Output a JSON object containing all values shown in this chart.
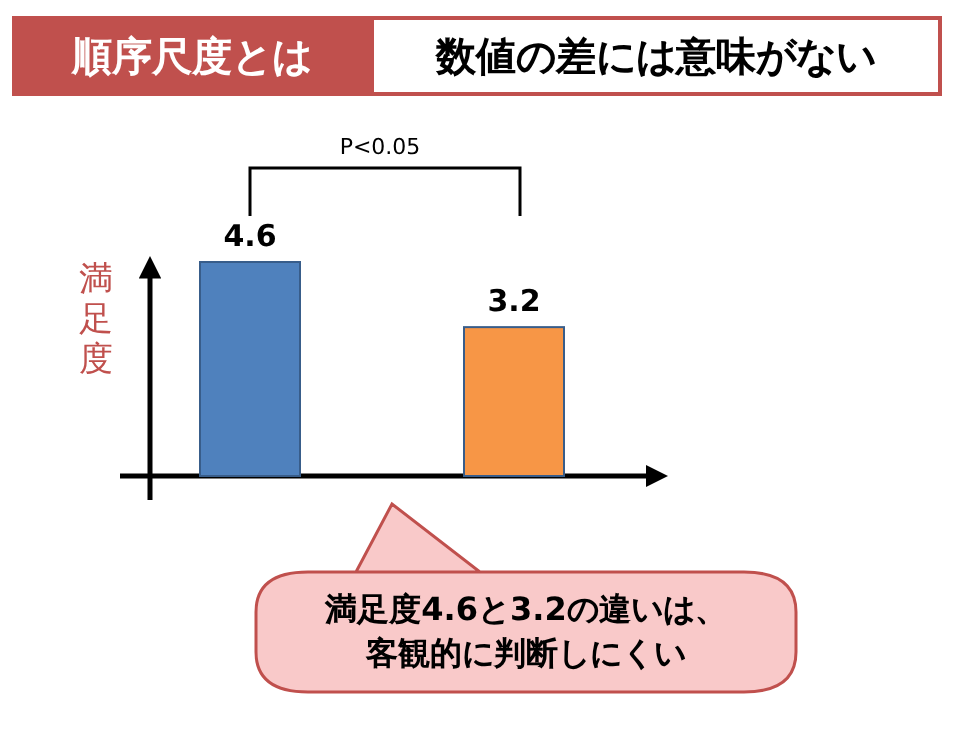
{
  "chart_data": {
    "type": "bar",
    "title": "順序尺度とは",
    "subtitle": "数値の差には意味がない",
    "ylabel": "満足度",
    "categories": [
      null,
      null
    ],
    "values": [
      4.6,
      3.2
    ],
    "colors": [
      "#4f81bd",
      "#f79646"
    ],
    "data_labels": true,
    "annotations": [
      "P<0.05",
      "満足度4.6と3.2の違いは、客観的に判断しにくい"
    ]
  }
}
